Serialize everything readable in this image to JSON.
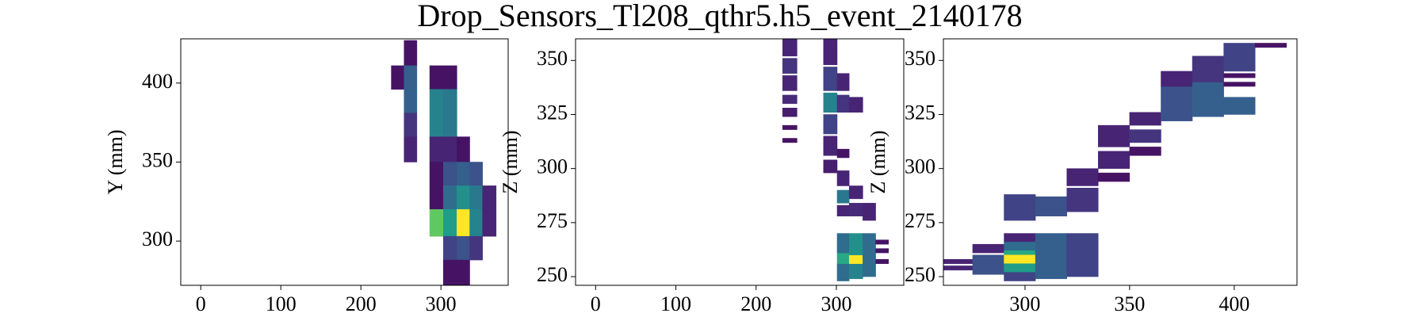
{
  "title": "Drop_Sensors_Tl208_qthr5.h5_event_2140178",
  "chart_data": [
    {
      "type": "heatmap",
      "ylabel": "Y (mm)",
      "colormap": "viridis",
      "clim": [
        0,
        1
      ],
      "xlim": [
        -25,
        384
      ],
      "ylim": [
        272,
        428
      ],
      "xticks": [
        0,
        100,
        200,
        300
      ],
      "yticks": [
        300,
        350,
        400
      ],
      "cells": [
        [
          238,
          254,
          396,
          411,
          0.05
        ],
        [
          254,
          270,
          411,
          427,
          0.05
        ],
        [
          254,
          270,
          396,
          411,
          0.3
        ],
        [
          254,
          270,
          381,
          396,
          0.3
        ],
        [
          254,
          270,
          366,
          381,
          0.15
        ],
        [
          254,
          270,
          350,
          366,
          0.1
        ],
        [
          286,
          303,
          396,
          411,
          0.05
        ],
        [
          286,
          303,
          381,
          396,
          0.45
        ],
        [
          286,
          303,
          366,
          381,
          0.45
        ],
        [
          286,
          303,
          350,
          366,
          0.1
        ],
        [
          286,
          303,
          335,
          350,
          0.05
        ],
        [
          286,
          303,
          320,
          335,
          0.05
        ],
        [
          286,
          303,
          303,
          320,
          0.75
        ],
        [
          303,
          320,
          396,
          411,
          0.05
        ],
        [
          303,
          320,
          381,
          396,
          0.4
        ],
        [
          303,
          320,
          366,
          381,
          0.4
        ],
        [
          303,
          320,
          350,
          366,
          0.1
        ],
        [
          303,
          320,
          335,
          350,
          0.25
        ],
        [
          303,
          320,
          320,
          335,
          0.35
        ],
        [
          303,
          320,
          303,
          320,
          0.55
        ],
        [
          303,
          320,
          288,
          303,
          0.2
        ],
        [
          303,
          320,
          272,
          288,
          0.05
        ],
        [
          320,
          336,
          350,
          366,
          0.05
        ],
        [
          320,
          336,
          335,
          350,
          0.3
        ],
        [
          320,
          336,
          320,
          335,
          0.5
        ],
        [
          320,
          336,
          303,
          320,
          1.0
        ],
        [
          320,
          336,
          288,
          303,
          0.25
        ],
        [
          320,
          336,
          272,
          288,
          0.05
        ],
        [
          336,
          352,
          335,
          350,
          0.25
        ],
        [
          336,
          352,
          320,
          335,
          0.4
        ],
        [
          336,
          352,
          303,
          320,
          0.45
        ],
        [
          336,
          352,
          288,
          303,
          0.15
        ],
        [
          352,
          369,
          320,
          335,
          0.1
        ],
        [
          352,
          369,
          303,
          320,
          0.1
        ]
      ]
    },
    {
      "type": "heatmap",
      "ylabel": "Z (mm)",
      "colormap": "viridis",
      "clim": [
        0,
        1
      ],
      "xlim": [
        -25,
        384
      ],
      "ylim": [
        246,
        360
      ],
      "xticks": [
        0,
        100,
        200,
        300
      ],
      "yticks": [
        250,
        275,
        300,
        325,
        350
      ],
      "cells": [
        [
          233,
          251,
          352,
          360,
          0.1
        ],
        [
          233,
          251,
          344,
          351,
          0.15
        ],
        [
          233,
          251,
          336,
          343,
          0.1
        ],
        [
          233,
          251,
          330,
          334,
          0.12
        ],
        [
          233,
          251,
          324,
          328,
          0.08
        ],
        [
          233,
          251,
          318,
          320,
          0.05
        ],
        [
          233,
          251,
          312,
          314,
          0.05
        ],
        [
          284,
          301,
          348,
          360,
          0.1
        ],
        [
          284,
          301,
          336,
          347,
          0.2
        ],
        [
          284,
          301,
          326,
          335,
          0.45
        ],
        [
          284,
          301,
          316,
          325,
          0.2
        ],
        [
          284,
          301,
          306,
          315,
          0.1
        ],
        [
          284,
          301,
          298,
          304,
          0.08
        ],
        [
          301,
          316,
          336,
          344,
          0.1
        ],
        [
          301,
          316,
          326,
          334,
          0.15
        ],
        [
          301,
          316,
          305,
          309,
          0.05
        ],
        [
          301,
          316,
          292,
          299,
          0.1
        ],
        [
          301,
          316,
          284,
          290,
          0.4
        ],
        [
          301,
          316,
          278,
          283,
          0.1
        ],
        [
          301,
          316,
          248,
          256,
          0.35
        ],
        [
          301,
          316,
          256,
          261,
          0.6
        ],
        [
          301,
          316,
          261,
          270,
          0.35
        ],
        [
          316,
          333,
          326,
          333,
          0.1
        ],
        [
          316,
          333,
          286,
          292,
          0.1
        ],
        [
          316,
          333,
          278,
          284,
          0.12
        ],
        [
          316,
          333,
          249,
          256,
          0.45
        ],
        [
          316,
          333,
          256,
          260,
          1.0
        ],
        [
          316,
          333,
          260,
          270,
          0.5
        ],
        [
          333,
          349,
          276,
          284,
          0.1
        ],
        [
          333,
          349,
          250,
          270,
          0.35
        ],
        [
          349,
          365,
          265,
          267,
          0.05
        ],
        [
          349,
          365,
          261,
          263,
          0.05
        ],
        [
          349,
          365,
          256,
          258,
          0.05
        ]
      ]
    },
    {
      "type": "heatmap",
      "ylabel": "Z (mm)",
      "colormap": "viridis",
      "clim": [
        0,
        1
      ],
      "xlim": [
        261,
        430
      ],
      "ylim": [
        246,
        360
      ],
      "xticks": [
        300,
        350,
        400
      ],
      "yticks": [
        250,
        275,
        300,
        325,
        350
      ],
      "cells": [
        [
          260,
          275,
          256,
          258,
          0.1
        ],
        [
          260,
          275,
          253,
          255,
          0.1
        ],
        [
          275,
          290,
          261,
          265,
          0.1
        ],
        [
          275,
          290,
          251,
          260,
          0.25
        ],
        [
          290,
          305,
          266,
          270,
          0.1
        ],
        [
          290,
          305,
          262,
          266,
          0.35
        ],
        [
          290,
          305,
          260,
          262,
          0.6
        ],
        [
          290,
          305,
          256,
          260,
          1.0
        ],
        [
          290,
          305,
          252,
          256,
          0.55
        ],
        [
          290,
          305,
          248,
          252,
          0.2
        ],
        [
          290,
          305,
          276,
          288,
          0.2
        ],
        [
          305,
          320,
          249,
          270,
          0.3
        ],
        [
          305,
          320,
          278,
          287,
          0.25
        ],
        [
          320,
          335,
          250,
          270,
          0.2
        ],
        [
          320,
          335,
          280,
          291,
          0.15
        ],
        [
          320,
          335,
          292,
          300,
          0.1
        ],
        [
          335,
          350,
          310,
          320,
          0.1
        ],
        [
          335,
          350,
          300,
          308,
          0.1
        ],
        [
          335,
          350,
          294,
          298,
          0.05
        ],
        [
          350,
          365,
          320,
          326,
          0.1
        ],
        [
          350,
          365,
          312,
          318,
          0.15
        ],
        [
          350,
          365,
          306,
          310,
          0.05
        ],
        [
          365,
          380,
          322,
          338,
          0.25
        ],
        [
          365,
          380,
          338,
          345,
          0.1
        ],
        [
          380,
          395,
          324,
          340,
          0.3
        ],
        [
          380,
          395,
          340,
          352,
          0.15
        ],
        [
          395,
          410,
          325,
          333,
          0.3
        ],
        [
          395,
          410,
          345,
          358,
          0.2
        ],
        [
          395,
          410,
          342,
          344,
          0.05
        ],
        [
          395,
          410,
          338,
          340,
          0.05
        ],
        [
          410,
          425,
          356,
          358,
          0.05
        ]
      ]
    }
  ]
}
